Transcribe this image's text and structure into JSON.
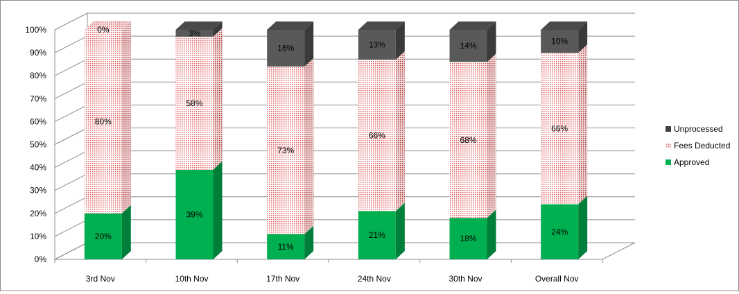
{
  "chart_data": {
    "type": "bar",
    "stacked": true,
    "percent_stacked": true,
    "three_d": true,
    "categories": [
      "3rd Nov",
      "10th Nov",
      "17th Nov",
      "24th Nov",
      "30th Nov",
      "Overall Nov"
    ],
    "series": [
      {
        "name": "Approved",
        "values": [
          20,
          39,
          11,
          21,
          18,
          24
        ],
        "labels": [
          "20%",
          "39%",
          "11%",
          "21%",
          "18%",
          "24%"
        ],
        "color": "#00b050",
        "pattern": "solid"
      },
      {
        "name": "Fees Deducted",
        "values": [
          80,
          58,
          73,
          66,
          68,
          66
        ],
        "labels": [
          "80%",
          "58%",
          "73%",
          "66%",
          "68%",
          "66%"
        ],
        "color": "#f4b6b6",
        "pattern": "dotted"
      },
      {
        "name": "Unprocessed",
        "values": [
          0,
          3,
          16,
          13,
          14,
          10
        ],
        "labels": [
          "0%",
          "3%",
          "16%",
          "13%",
          "14%",
          "10%"
        ],
        "color": "#595959",
        "pattern": "solid"
      }
    ],
    "ylim": [
      0,
      100
    ],
    "yticks": [
      "0%",
      "10%",
      "20%",
      "30%",
      "40%",
      "50%",
      "60%",
      "70%",
      "80%",
      "90%",
      "100%"
    ],
    "grid": true,
    "legend": {
      "position": "right",
      "entries": [
        "Unprocessed",
        "Fees Deducted",
        "Approved"
      ]
    },
    "title": "",
    "xlabel": "",
    "ylabel": ""
  }
}
